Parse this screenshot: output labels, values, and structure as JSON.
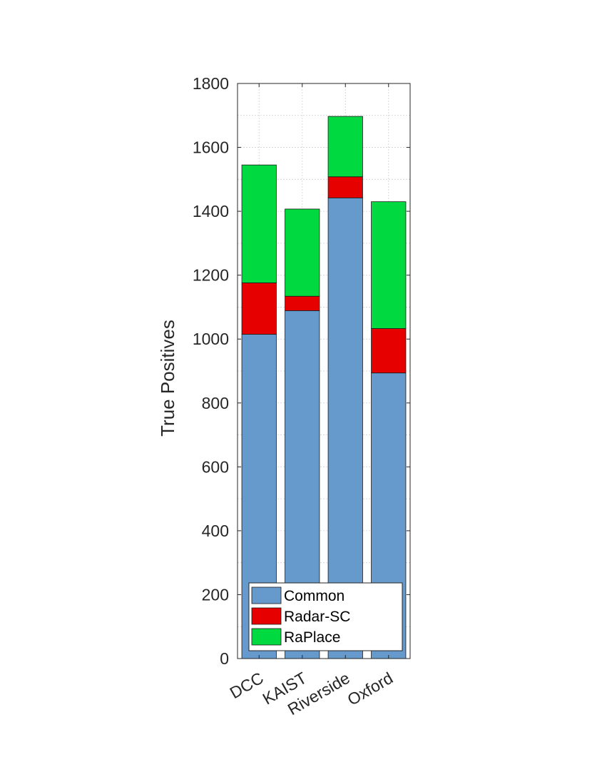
{
  "chart_data": {
    "type": "bar",
    "stacked": true,
    "categories": [
      "DCC",
      "KAIST",
      "Riverside",
      "Oxford"
    ],
    "series": [
      {
        "name": "Common",
        "values": [
          1015,
          1089,
          1442,
          894
        ],
        "color": "#6699CC"
      },
      {
        "name": "Radar-SC",
        "values": [
          161,
          45,
          66,
          139
        ],
        "color": "#E60000"
      },
      {
        "name": "RaPlace",
        "values": [
          369,
          273,
          189,
          397
        ],
        "color": "#00D93F"
      }
    ],
    "title": "",
    "xlabel": "",
    "ylabel": "True Positives",
    "ylim": [
      0,
      1800
    ],
    "yticks": [
      0,
      200,
      400,
      600,
      800,
      1000,
      1200,
      1400,
      1600,
      1800
    ],
    "grid": true,
    "x_tick_rotation_deg": -30,
    "legend_position": "bottom-right"
  }
}
